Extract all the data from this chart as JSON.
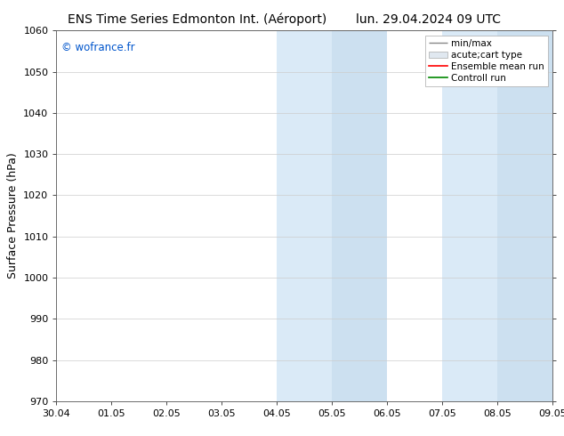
{
  "title_left": "ENS Time Series Edmonton Int. (Aéroport)",
  "title_right": "lun. 29.04.2024 09 UTC",
  "ylabel": "Surface Pressure (hPa)",
  "ylim": [
    970,
    1060
  ],
  "yticks": [
    970,
    980,
    990,
    1000,
    1010,
    1020,
    1030,
    1040,
    1050,
    1060
  ],
  "x_labels": [
    "30.04",
    "01.05",
    "02.05",
    "03.05",
    "04.05",
    "05.05",
    "06.05",
    "07.05",
    "08.05",
    "09.05"
  ],
  "x_values": [
    0,
    1,
    2,
    3,
    4,
    5,
    6,
    7,
    8,
    9
  ],
  "shaded_bands": [
    {
      "xmin": 4.0,
      "xmax": 5.0,
      "color": "#daeaf7"
    },
    {
      "xmin": 5.0,
      "xmax": 6.0,
      "color": "#cce0f0"
    },
    {
      "xmin": 7.0,
      "xmax": 8.0,
      "color": "#daeaf7"
    },
    {
      "xmin": 8.0,
      "xmax": 9.0,
      "color": "#cce0f0"
    }
  ],
  "copyright_text": "© wofrance.fr",
  "copyright_color": "#0055cc",
  "legend_labels": [
    "min/max",
    "acute;cart type",
    "Ensemble mean run",
    "Controll run"
  ],
  "legend_colors": [
    "#888888",
    "#cccccc",
    "#ff0000",
    "#008800"
  ],
  "background_color": "#ffffff",
  "plot_bg_color": "#ffffff",
  "title_fontsize": 10,
  "tick_fontsize": 8,
  "label_fontsize": 9,
  "legend_fontsize": 7.5
}
